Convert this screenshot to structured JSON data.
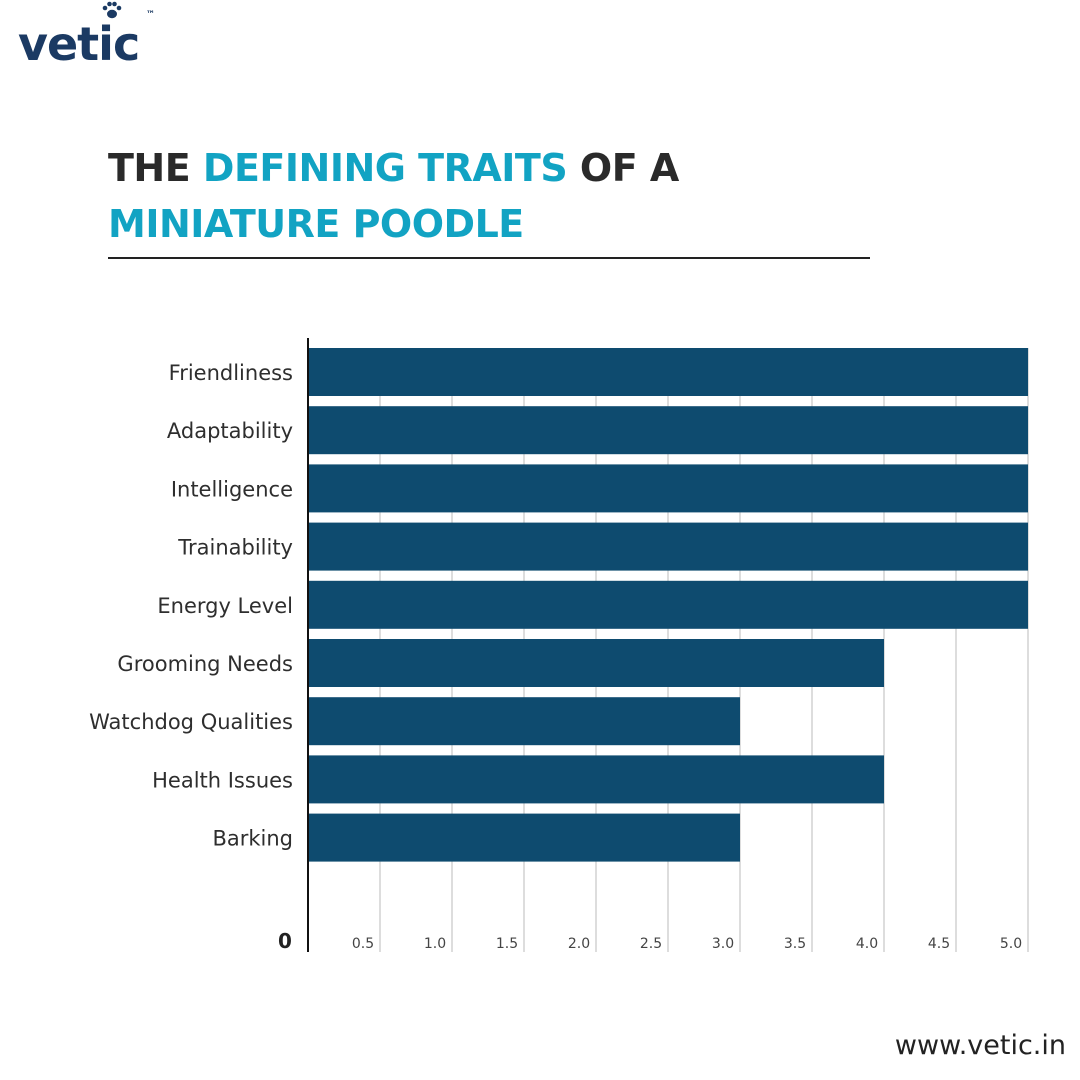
{
  "brand": {
    "logo_text": "vetic",
    "trademark": "™",
    "paw_icon": "paw-icon",
    "color": "#1b3a63"
  },
  "heading": {
    "part1": "THE ",
    "part2": "DEFINING TRAITS",
    "part3": " OF A",
    "part4": "MINIATURE POODLE",
    "accent_color": "#12a3c3",
    "text_color": "#2a2a2a"
  },
  "chart_data": {
    "type": "bar",
    "orientation": "horizontal",
    "categories": [
      "Friendliness",
      "Adaptability",
      "Intelligence",
      "Trainability",
      "Energy Level",
      "Grooming Needs",
      "Watchdog Qualities",
      "Health Issues",
      "Barking"
    ],
    "values": [
      5,
      5,
      5,
      5,
      5,
      4,
      3,
      4,
      3
    ],
    "xlim": [
      0,
      5
    ],
    "x_ticks": [
      "0.5",
      "1.0",
      "1.5",
      "2.0",
      "2.5",
      "3.0",
      "3.5",
      "4.0",
      "4.5",
      "5.0"
    ],
    "origin_label": "0",
    "grid": true,
    "bar_color": "#0e4b6f"
  },
  "footer": {
    "url": "www.vetic.in"
  }
}
